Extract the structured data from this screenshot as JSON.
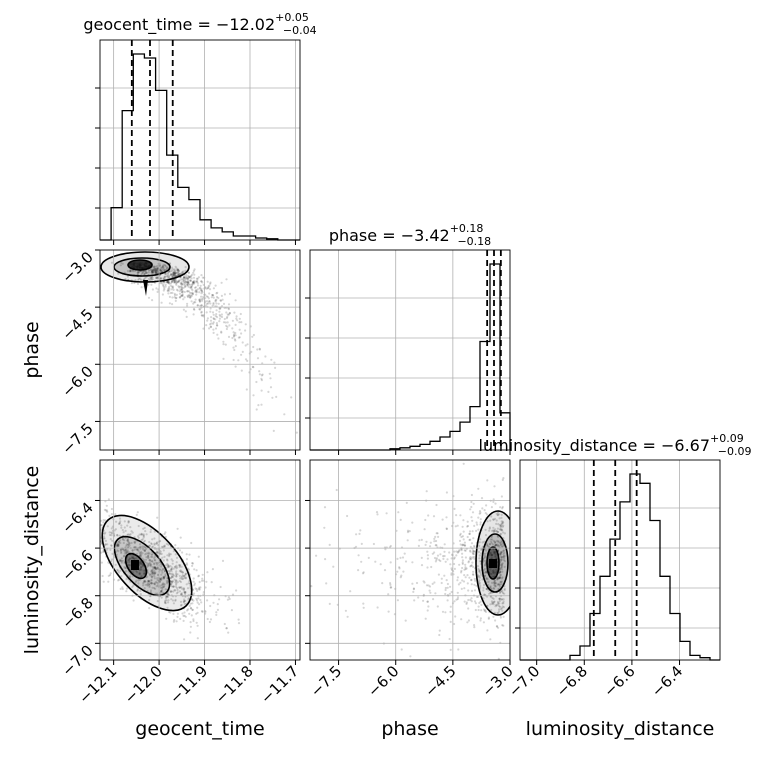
{
  "chart_data": {
    "type": "corner",
    "parameters": [
      "geocent_time",
      "phase",
      "luminosity_distance"
    ],
    "axis_labels": [
      "geocent_time",
      "phase",
      "luminosity_distance"
    ],
    "titles": [
      {
        "name": "geocent_time",
        "median": "−12.02",
        "plus": "+0.05",
        "minus": "−0.04"
      },
      {
        "name": "phase",
        "median": "−3.42",
        "plus": "+0.18",
        "minus": "−0.18"
      },
      {
        "name": "luminosity_distance",
        "median": "−6.67",
        "plus": "+0.09",
        "minus": "−0.09"
      }
    ],
    "ranges": {
      "geocent_time": [
        -12.13,
        -11.69
      ],
      "phase": [
        -8.25,
        -3.0
      ],
      "luminosity_distance": [
        -7.07,
        -6.23
      ]
    },
    "ticks": {
      "geocent_time": {
        "values": [
          -12.1,
          -12.0,
          -11.9,
          -11.8,
          -11.7
        ],
        "labels": [
          "−12.1",
          "−12.0",
          "−11.9",
          "−11.8",
          "−11.7"
        ]
      },
      "phase": {
        "values": [
          -7.5,
          -6.0,
          -4.5,
          -3.0
        ],
        "labels": [
          "−7.5",
          "−6.0",
          "−4.5",
          "−3.0"
        ]
      },
      "luminosity_distance": {
        "values": [
          -7.0,
          -6.8,
          -6.6,
          -6.4
        ],
        "labels": [
          "−7.0",
          "−6.8",
          "−6.6",
          "−6.4"
        ]
      }
    },
    "quantiles": {
      "geocent_time": [
        -12.06,
        -12.02,
        -11.97
      ],
      "phase": [
        -3.6,
        -3.42,
        -3.24
      ],
      "luminosity_distance": [
        -6.76,
        -6.67,
        -6.58
      ]
    },
    "hist_geocent_time": [
      0,
      8,
      32,
      46,
      45,
      37,
      21,
      13,
      10,
      5,
      3,
      2,
      1,
      1,
      0.5,
      0.3,
      0,
      0
    ],
    "hist_phase": [
      0,
      0,
      0,
      0,
      0,
      0,
      0,
      0,
      0.4,
      0.7,
      1.2,
      1.8,
      2.8,
      4.2,
      6,
      9,
      14,
      35,
      60,
      12
    ],
    "hist_luminosity_distance": [
      0,
      0,
      0,
      0,
      0,
      1,
      3,
      10,
      18,
      26,
      34,
      40,
      38,
      30,
      18,
      10,
      4,
      1,
      0.5,
      0
    ],
    "gridlines": true
  }
}
